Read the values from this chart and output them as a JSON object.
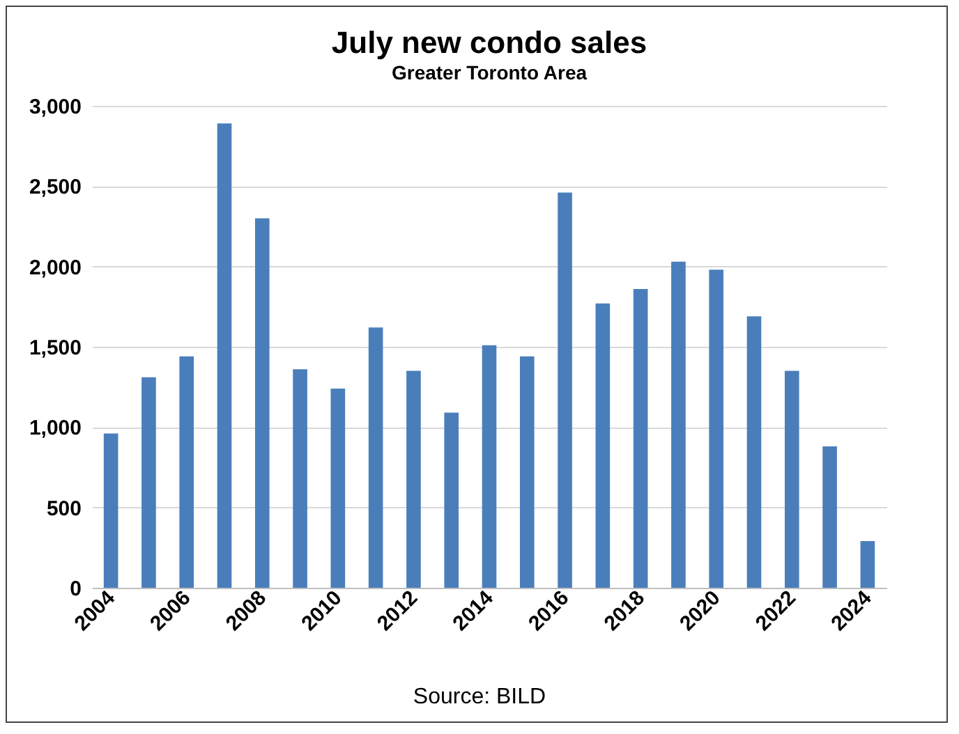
{
  "chart_data": {
    "type": "bar",
    "title": "July new condo sales",
    "subtitle": "Greater Toronto Area",
    "categories": [
      "2004",
      null,
      "2006",
      null,
      "2008",
      null,
      "2010",
      null,
      "2012",
      null,
      "2014",
      null,
      "2016",
      null,
      "2018",
      null,
      "2020",
      null,
      "2022",
      null,
      "2024"
    ],
    "values": [
      960,
      1310,
      1440,
      2890,
      2300,
      1360,
      1240,
      1620,
      1350,
      1090,
      1510,
      1440,
      2460,
      1770,
      1860,
      2030,
      1980,
      1690,
      1350,
      880,
      290
    ],
    "color": "#4a7ebb",
    "ylim": [
      0,
      3000
    ],
    "yticks": [
      {
        "value": 0,
        "label": "0"
      },
      {
        "value": 500,
        "label": "500"
      },
      {
        "value": 1000,
        "label": "1,000"
      },
      {
        "value": 1500,
        "label": "1,500"
      },
      {
        "value": 2000,
        "label": "2,000"
      },
      {
        "value": 2500,
        "label": "2,500"
      },
      {
        "value": 3000,
        "label": "3,000"
      }
    ],
    "grid": "y",
    "annotations": [
      "Source:  BILD"
    ]
  }
}
